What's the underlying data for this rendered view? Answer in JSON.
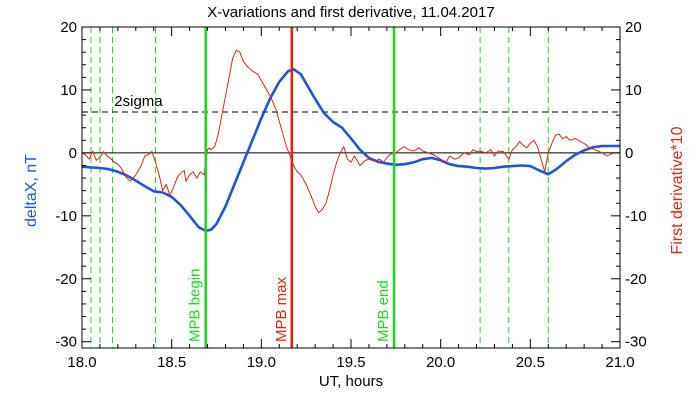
{
  "chart_data": {
    "type": "line",
    "title": "X-variations and first derivative, 11.04.2017",
    "xlabel": "UT, hours",
    "ylabel_left": "deltaX, nT",
    "ylabel_right": "First derivative*10",
    "xlim": [
      18.0,
      21.0
    ],
    "ylim_left": [
      -31,
      20
    ],
    "ylim_right": [
      -31,
      20
    ],
    "x_ticks": [
      "18.0",
      "18.5",
      "19.0",
      "19.5",
      "20.0",
      "20.5",
      "21.0"
    ],
    "y_ticks_left": [
      "20",
      "10",
      "0",
      "-10",
      "-20",
      "-30"
    ],
    "y_ticks_right": [
      "20",
      "10",
      "0",
      "-10",
      "-20",
      "-30"
    ],
    "grid": false,
    "colors": {
      "deltaX": "#1f55d6",
      "derivative": "#d42a12",
      "marker_line": "#21d621",
      "mpb_max_line": "#d42a12",
      "reference": "#000000",
      "text": "#000000"
    },
    "series": [
      {
        "key": "deltaX",
        "axis": "left",
        "points": [
          [
            18.0,
            -2.2
          ],
          [
            18.05,
            -2.3
          ],
          [
            18.1,
            -2.4
          ],
          [
            18.15,
            -2.6
          ],
          [
            18.2,
            -3.0
          ],
          [
            18.25,
            -3.6
          ],
          [
            18.3,
            -4.4
          ],
          [
            18.35,
            -5.3
          ],
          [
            18.4,
            -6.1
          ],
          [
            18.45,
            -6.3
          ],
          [
            18.5,
            -7.0
          ],
          [
            18.55,
            -8.3
          ],
          [
            18.6,
            -10.0
          ],
          [
            18.65,
            -11.8
          ],
          [
            18.69,
            -12.4
          ],
          [
            18.72,
            -12.2
          ],
          [
            18.75,
            -11.3
          ],
          [
            18.8,
            -8.5
          ],
          [
            18.85,
            -5.0
          ],
          [
            18.9,
            -1.5
          ],
          [
            18.95,
            2.0
          ],
          [
            19.0,
            5.5
          ],
          [
            19.05,
            8.7
          ],
          [
            19.1,
            11.3
          ],
          [
            19.15,
            13.0
          ],
          [
            19.18,
            13.3
          ],
          [
            19.22,
            12.5
          ],
          [
            19.25,
            11.0
          ],
          [
            19.3,
            8.6
          ],
          [
            19.35,
            6.3
          ],
          [
            19.4,
            4.9
          ],
          [
            19.45,
            4.0
          ],
          [
            19.5,
            2.3
          ],
          [
            19.55,
            0.5
          ],
          [
            19.6,
            -0.8
          ],
          [
            19.65,
            -1.4
          ],
          [
            19.7,
            -1.7
          ],
          [
            19.75,
            -1.9
          ],
          [
            19.8,
            -1.8
          ],
          [
            19.85,
            -1.5
          ],
          [
            19.9,
            -1.0
          ],
          [
            19.95,
            -0.8
          ],
          [
            20.0,
            -1.2
          ],
          [
            20.05,
            -1.8
          ],
          [
            20.1,
            -2.1
          ],
          [
            20.15,
            -2.2
          ],
          [
            20.2,
            -2.4
          ],
          [
            20.25,
            -2.5
          ],
          [
            20.3,
            -2.4
          ],
          [
            20.35,
            -2.2
          ],
          [
            20.4,
            -2.1
          ],
          [
            20.45,
            -2.0
          ],
          [
            20.5,
            -2.1
          ],
          [
            20.55,
            -2.8
          ],
          [
            20.6,
            -3.4
          ],
          [
            20.65,
            -2.5
          ],
          [
            20.7,
            -1.3
          ],
          [
            20.75,
            -0.3
          ],
          [
            20.8,
            0.4
          ],
          [
            20.85,
            0.9
          ],
          [
            20.9,
            1.1
          ],
          [
            21.0,
            1.1
          ]
        ]
      },
      {
        "key": "derivative",
        "axis": "right",
        "points": [
          [
            18.0,
            0.0
          ],
          [
            18.02,
            -0.3
          ],
          [
            18.04,
            -1.0
          ],
          [
            18.06,
            0.3
          ],
          [
            18.08,
            -1.2
          ],
          [
            18.1,
            -0.7
          ],
          [
            18.12,
            0.2
          ],
          [
            18.14,
            -0.5
          ],
          [
            18.16,
            -0.9
          ],
          [
            18.18,
            -1.5
          ],
          [
            18.2,
            -1.8
          ],
          [
            18.22,
            -2.5
          ],
          [
            18.25,
            -4.0
          ],
          [
            18.27,
            -4.5
          ],
          [
            18.3,
            -3.5
          ],
          [
            18.33,
            -2.0
          ],
          [
            18.35,
            -0.5
          ],
          [
            18.37,
            -0.3
          ],
          [
            18.39,
            0.2
          ],
          [
            18.41,
            -1.5
          ],
          [
            18.43,
            -3.5
          ],
          [
            18.45,
            -6.0
          ],
          [
            18.47,
            -5.0
          ],
          [
            18.49,
            -6.8
          ],
          [
            18.51,
            -5.5
          ],
          [
            18.53,
            -4.0
          ],
          [
            18.55,
            -3.2
          ],
          [
            18.57,
            -2.8
          ],
          [
            18.58,
            -4.5
          ],
          [
            18.6,
            -3.5
          ],
          [
            18.62,
            -3.0
          ],
          [
            18.64,
            -4.0
          ],
          [
            18.66,
            -3.0
          ],
          [
            18.68,
            -3.5
          ],
          [
            18.7,
            0.5
          ],
          [
            18.71,
            0.8
          ],
          [
            18.72,
            0.5
          ],
          [
            18.74,
            1.0
          ],
          [
            18.76,
            3.0
          ],
          [
            18.78,
            6.0
          ],
          [
            18.8,
            9.0
          ],
          [
            18.82,
            12.0
          ],
          [
            18.84,
            15.0
          ],
          [
            18.86,
            16.3
          ],
          [
            18.88,
            16.0
          ],
          [
            18.9,
            14.5
          ],
          [
            18.92,
            13.8
          ],
          [
            18.95,
            13.0
          ],
          [
            18.98,
            12.5
          ],
          [
            19.0,
            11.5
          ],
          [
            19.02,
            10.5
          ],
          [
            19.05,
            9.0
          ],
          [
            19.08,
            7.0
          ],
          [
            19.1,
            5.0
          ],
          [
            19.12,
            3.0
          ],
          [
            19.14,
            1.0
          ],
          [
            19.16,
            -0.5
          ],
          [
            19.18,
            -2.0
          ],
          [
            19.2,
            -3.0
          ],
          [
            19.22,
            -3.5
          ],
          [
            19.25,
            -5.0
          ],
          [
            19.28,
            -7.0
          ],
          [
            19.3,
            -8.5
          ],
          [
            19.32,
            -9.5
          ],
          [
            19.34,
            -9.0
          ],
          [
            19.36,
            -8.0
          ],
          [
            19.38,
            -6.0
          ],
          [
            19.4,
            -3.5
          ],
          [
            19.42,
            -1.5
          ],
          [
            19.44,
            0.0
          ],
          [
            19.46,
            1.0
          ],
          [
            19.48,
            -1.0
          ],
          [
            19.5,
            -1.5
          ],
          [
            19.52,
            -0.5
          ],
          [
            19.55,
            -2.0
          ],
          [
            19.58,
            -1.2
          ],
          [
            19.6,
            -1.0
          ],
          [
            19.63,
            -1.3
          ],
          [
            19.66,
            -1.0
          ],
          [
            19.68,
            -1.5
          ],
          [
            19.7,
            -0.8
          ],
          [
            19.72,
            -0.2
          ],
          [
            19.75,
            0.0
          ],
          [
            19.78,
            0.7
          ],
          [
            19.8,
            1.0
          ],
          [
            19.82,
            0.5
          ],
          [
            19.85,
            0.3
          ],
          [
            19.88,
            0.8
          ],
          [
            19.9,
            0.3
          ],
          [
            19.93,
            0.0
          ],
          [
            19.96,
            -0.3
          ],
          [
            20.0,
            -1.0
          ],
          [
            20.03,
            -1.5
          ],
          [
            20.05,
            -0.5
          ],
          [
            20.08,
            -1.0
          ],
          [
            20.1,
            -0.8
          ],
          [
            20.13,
            0.0
          ],
          [
            20.16,
            -0.3
          ],
          [
            20.18,
            0.5
          ],
          [
            20.2,
            0.2
          ],
          [
            20.22,
            0.3
          ],
          [
            20.25,
            0.0
          ],
          [
            20.28,
            0.5
          ],
          [
            20.3,
            -0.5
          ],
          [
            20.32,
            0.3
          ],
          [
            20.35,
            0.2
          ],
          [
            20.38,
            -1.0
          ],
          [
            20.4,
            0.5
          ],
          [
            20.42,
            1.0
          ],
          [
            20.44,
            1.8
          ],
          [
            20.46,
            1.2
          ],
          [
            20.48,
            0.8
          ],
          [
            20.5,
            1.5
          ],
          [
            20.52,
            2.0
          ],
          [
            20.54,
            1.0
          ],
          [
            20.56,
            -1.0
          ],
          [
            20.58,
            -3.0
          ],
          [
            20.6,
            0.0
          ],
          [
            20.62,
            1.5
          ],
          [
            20.64,
            2.8
          ],
          [
            20.66,
            3.0
          ],
          [
            20.68,
            2.2
          ],
          [
            20.7,
            2.6
          ],
          [
            20.72,
            2.0
          ],
          [
            20.75,
            2.3
          ],
          [
            20.78,
            1.8
          ],
          [
            20.8,
            1.5
          ],
          [
            20.83,
            0.8
          ],
          [
            20.86,
            0.5
          ],
          [
            20.9,
            0.0
          ],
          [
            20.93,
            -0.5
          ],
          [
            20.96,
            0.0
          ],
          [
            21.0,
            0.0
          ]
        ]
      }
    ],
    "reference_lines": [
      {
        "key": "zero",
        "y": 0,
        "style": "solid"
      },
      {
        "key": "two_sigma",
        "y": 6.5,
        "style": "dashed",
        "label": "2sigma",
        "label_x": 18.18
      }
    ],
    "dashed_verticals": [
      18.05,
      18.1,
      18.17,
      18.41,
      20.22,
      20.38,
      20.6
    ],
    "markers": [
      {
        "x": 18.69,
        "label": "MPB begin",
        "color": "#21d621"
      },
      {
        "x": 19.17,
        "label": "MPB max",
        "color": "#d42a12"
      },
      {
        "x": 19.74,
        "label": "MPB end",
        "color": "#21d621"
      }
    ]
  }
}
